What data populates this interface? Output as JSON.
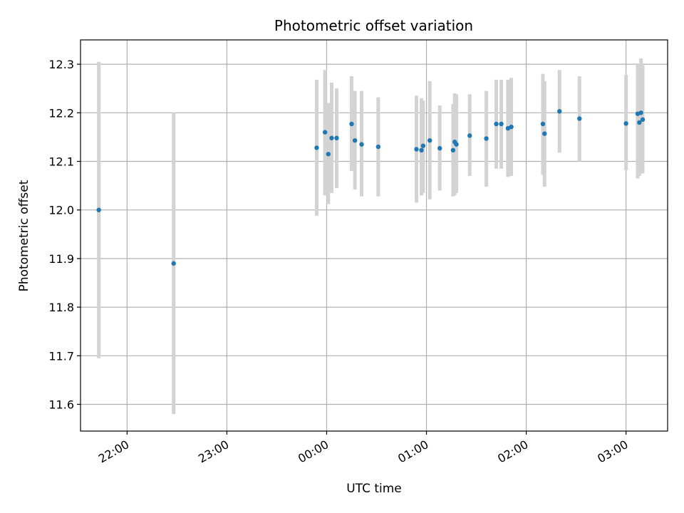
{
  "chart_data": {
    "type": "scatter",
    "title": "Photometric offset variation",
    "xlabel": "UTC time",
    "ylabel": "Photometric offset",
    "x_ticks": [
      "22:00",
      "23:00",
      "00:00",
      "01:00",
      "02:00",
      "03:00"
    ],
    "y_ticks": [
      "11.6",
      "11.7",
      "11.8",
      "11.9",
      "12.0",
      "12.1",
      "12.2",
      "12.3"
    ],
    "ylim": [
      11.545,
      12.35
    ],
    "xlim": [
      "21:32",
      "03:25"
    ],
    "grid": true,
    "colors": {
      "point": "#1f77b4",
      "errorbar": "#d3d3d3",
      "grid": "#b0b0b0"
    },
    "series": [
      {
        "points": [
          {
            "x": "21:43",
            "y": 12.0,
            "low": 11.695,
            "high": 12.305
          },
          {
            "x": "22:28",
            "y": 11.89,
            "low": 11.58,
            "high": 12.2
          },
          {
            "x": "23:54",
            "y": 12.128,
            "low": 11.988,
            "high": 12.268
          },
          {
            "x": "23:59",
            "y": 12.16,
            "low": 12.03,
            "high": 12.288
          },
          {
            "x": "00:01",
            "y": 12.115,
            "low": 12.012,
            "high": 12.22
          },
          {
            "x": "00:03",
            "y": 12.148,
            "low": 12.035,
            "high": 12.262
          },
          {
            "x": "00:06",
            "y": 12.148,
            "low": 12.045,
            "high": 12.25
          },
          {
            "x": "00:15",
            "y": 12.177,
            "low": 12.08,
            "high": 12.275
          },
          {
            "x": "00:17",
            "y": 12.143,
            "low": 12.042,
            "high": 12.245
          },
          {
            "x": "00:21",
            "y": 12.135,
            "low": 12.028,
            "high": 12.245
          },
          {
            "x": "00:31",
            "y": 12.13,
            "low": 12.028,
            "high": 12.232
          },
          {
            "x": "00:54",
            "y": 12.125,
            "low": 12.015,
            "high": 12.235
          },
          {
            "x": "00:57",
            "y": 12.123,
            "low": 12.03,
            "high": 12.23
          },
          {
            "x": "00:58",
            "y": 12.132,
            "low": 12.035,
            "high": 12.225
          },
          {
            "x": "01:02",
            "y": 12.143,
            "low": 12.022,
            "high": 12.265
          },
          {
            "x": "01:08",
            "y": 12.127,
            "low": 12.04,
            "high": 12.215
          },
          {
            "x": "01:16",
            "y": 12.123,
            "low": 12.028,
            "high": 12.218
          },
          {
            "x": "01:17",
            "y": 12.14,
            "low": 12.03,
            "high": 12.24
          },
          {
            "x": "01:18",
            "y": 12.135,
            "low": 12.035,
            "high": 12.238
          },
          {
            "x": "01:26",
            "y": 12.153,
            "low": 12.07,
            "high": 12.238
          },
          {
            "x": "01:36",
            "y": 12.147,
            "low": 12.048,
            "high": 12.245
          },
          {
            "x": "01:42",
            "y": 12.177,
            "low": 12.085,
            "high": 12.268
          },
          {
            "x": "01:45",
            "y": 12.177,
            "low": 12.085,
            "high": 12.268
          },
          {
            "x": "01:49",
            "y": 12.168,
            "low": 12.068,
            "high": 12.268
          },
          {
            "x": "01:51",
            "y": 12.171,
            "low": 12.07,
            "high": 12.272
          },
          {
            "x": "02:10",
            "y": 12.177,
            "low": 12.072,
            "high": 12.28
          },
          {
            "x": "02:11",
            "y": 12.157,
            "low": 12.048,
            "high": 12.265
          },
          {
            "x": "02:20",
            "y": 12.203,
            "low": 12.118,
            "high": 12.288
          },
          {
            "x": "02:32",
            "y": 12.188,
            "low": 12.1,
            "high": 12.275
          },
          {
            "x": "03:00",
            "y": 12.178,
            "low": 12.082,
            "high": 12.278
          },
          {
            "x": "03:07",
            "y": 12.198,
            "low": 12.065,
            "high": 12.3
          },
          {
            "x": "03:08",
            "y": 12.18,
            "low": 12.07,
            "high": 12.295
          },
          {
            "x": "03:09",
            "y": 12.2,
            "low": 12.08,
            "high": 12.312
          },
          {
            "x": "03:10",
            "y": 12.186,
            "low": 12.075,
            "high": 12.298
          }
        ]
      }
    ]
  }
}
